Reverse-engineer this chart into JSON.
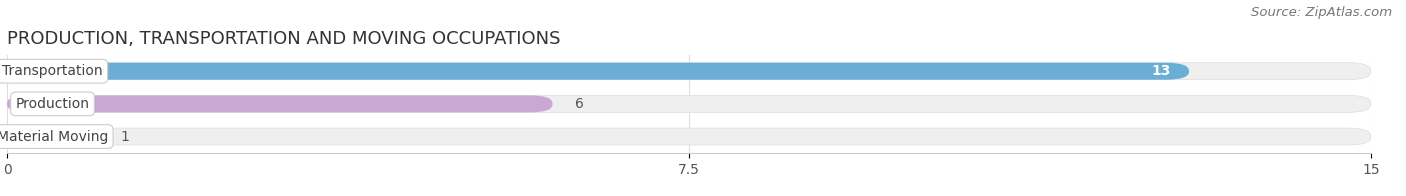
{
  "title": "PRODUCTION, TRANSPORTATION AND MOVING OCCUPATIONS",
  "source": "Source: ZipAtlas.com",
  "categories": [
    "Transportation",
    "Production",
    "Material Moving"
  ],
  "values": [
    13,
    6,
    1
  ],
  "bar_colors": [
    "#6aaed6",
    "#c9a8d4",
    "#7ecece"
  ],
  "bar_bg_color": "#efefef",
  "xlim": [
    0,
    15
  ],
  "xticks": [
    0,
    7.5,
    15
  ],
  "title_fontsize": 13,
  "source_fontsize": 9.5,
  "label_fontsize": 10,
  "value_fontsize": 10,
  "tick_fontsize": 10,
  "background_color": "#ffffff",
  "bar_height": 0.52
}
